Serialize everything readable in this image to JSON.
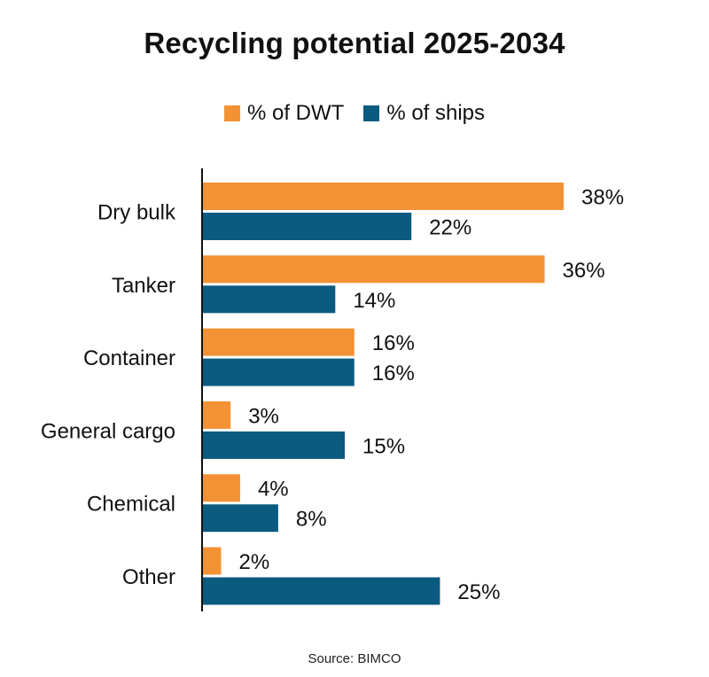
{
  "chart_data": {
    "type": "bar",
    "orientation": "horizontal",
    "title": "Recycling potential 2025-2034",
    "categories": [
      "Dry bulk",
      "Tanker",
      "Container",
      "General cargo",
      "Chemical",
      "Other"
    ],
    "series": [
      {
        "name": "% of DWT",
        "color": "#F39234",
        "values": [
          38,
          36,
          16,
          3,
          4,
          2
        ],
        "labels": [
          "38%",
          "36%",
          "16%",
          "3%",
          "4%",
          "2%"
        ]
      },
      {
        "name": "% of ships",
        "color": "#0B5A80",
        "values": [
          22,
          14,
          16,
          15,
          8,
          25
        ],
        "labels": [
          "22%",
          "14%",
          "16%",
          "15%",
          "8%",
          "25%"
        ]
      }
    ],
    "xlabel": "",
    "ylabel": "",
    "xlim": [
      0,
      38
    ],
    "grid": false,
    "legend_position": "top-center",
    "source": "Source: BIMCO"
  }
}
